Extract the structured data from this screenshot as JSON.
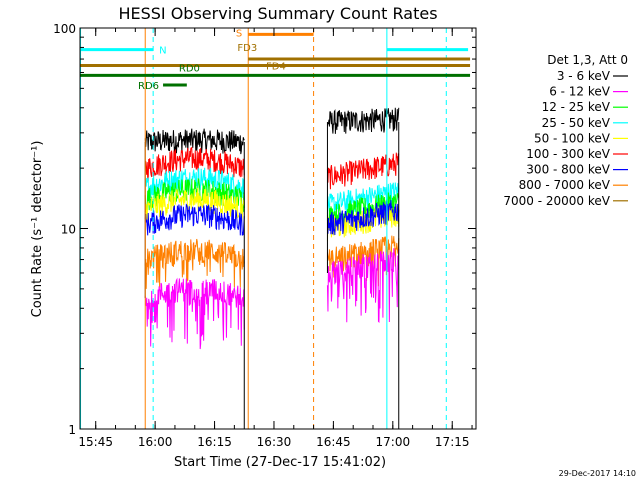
{
  "chart_data": {
    "type": "line",
    "title": "HESSI Observing Summary Count Rates",
    "xlabel": "Start Time (27-Dec-17 15:41:02)",
    "ylabel": "Count Rate (s⁻¹ detector⁻¹)",
    "yscale": "log",
    "ylim": [
      1,
      100
    ],
    "xlim_minutes": [
      "15:41:02",
      "17:21:00"
    ],
    "x_ticks": [
      "15:45",
      "16:00",
      "16:15",
      "16:30",
      "16:45",
      "17:00",
      "17:15"
    ],
    "y_ticks": [
      "1",
      "10",
      "100"
    ],
    "timestamp": "29-Dec-2017 14:10",
    "legend": {
      "title": "Det 1,3, Att 0",
      "placement": "right",
      "entries": [
        {
          "label": "3 - 6 keV",
          "color": "#000000"
        },
        {
          "label": "6 - 12 keV",
          "color": "#ff00ff"
        },
        {
          "label": "12 - 25 keV",
          "color": "#00ff00"
        },
        {
          "label": "25 - 50 keV",
          "color": "#00ffff"
        },
        {
          "label": "50 - 100 keV",
          "color": "#ffff00"
        },
        {
          "label": "100 - 300 keV",
          "color": "#ff0000"
        },
        {
          "label": "300 - 800 keV",
          "color": "#0000ff"
        },
        {
          "label": "800 - 7000 keV",
          "color": "#ff8000"
        },
        {
          "label": "7000 - 20000 keV",
          "color": "#a07000"
        }
      ]
    },
    "segments": [
      {
        "start": "15:57:30",
        "end": "16:22:30"
      },
      {
        "start": "16:43:30",
        "end": "17:01:30"
      }
    ],
    "series": [
      {
        "name": "3 - 6 keV",
        "color": "#000000",
        "levels": [
          27,
          34
        ]
      },
      {
        "name": "100 - 300 keV",
        "color": "#ff0000",
        "levels": [
          20,
          18
        ]
      },
      {
        "name": "25 - 50 keV",
        "color": "#00ffff",
        "levels": [
          16,
          13
        ]
      },
      {
        "name": "12 - 25 keV",
        "color": "#00ff00",
        "levels": [
          14,
          11.5
        ]
      },
      {
        "name": "50 - 100 keV",
        "color": "#ffff00",
        "levels": [
          12.5,
          10
        ]
      },
      {
        "name": "300 - 800 keV",
        "color": "#0000ff",
        "levels": [
          10.5,
          10.5
        ]
      },
      {
        "name": "800 - 7000 keV",
        "color": "#ff8000",
        "levels": [
          7,
          7
        ]
      },
      {
        "name": "6 - 12 keV",
        "color": "#ff00ff",
        "levels": [
          4.5,
          6
        ]
      }
    ],
    "flags": [
      {
        "label": "N",
        "color": "#00ffff",
        "start": "15:41:02",
        "end": "15:59:30",
        "value": 78
      },
      {
        "label": "",
        "color": "#00ffff",
        "start": "16:58:30",
        "end": "17:19:00",
        "value": 78
      },
      {
        "label": "S",
        "color": "#ff8000",
        "start": "16:23:30",
        "end": "16:40:00",
        "value": 93
      },
      {
        "label": "FD3",
        "color": "#a07000",
        "start": "16:23:30",
        "end": "17:19:30",
        "value": 70
      },
      {
        "label": "FD4",
        "color": "#a07000",
        "start": "15:41:02",
        "end": "17:19:30",
        "value": 65
      },
      {
        "label": "RD0",
        "color": "#007000",
        "start": "15:41:02",
        "end": "17:19:30",
        "value": 58
      },
      {
        "label": "RD6",
        "color": "#007000",
        "start": "16:02:00",
        "end": "16:08:00",
        "value": 52
      }
    ],
    "vlines": [
      {
        "time": "15:41:10",
        "color": "#00ffff",
        "style": "solid"
      },
      {
        "time": "15:59:30",
        "color": "#00ffff",
        "style": "dashed"
      },
      {
        "time": "15:57:30",
        "color": "#ff8000",
        "style": "solid"
      },
      {
        "time": "16:23:30",
        "color": "#ff8000",
        "style": "solid"
      },
      {
        "time": "16:40:00",
        "color": "#ff8000",
        "style": "dashed"
      },
      {
        "time": "16:58:30",
        "color": "#00ffff",
        "style": "solid"
      },
      {
        "time": "17:13:30",
        "color": "#00ffff",
        "style": "dashed"
      }
    ]
  }
}
